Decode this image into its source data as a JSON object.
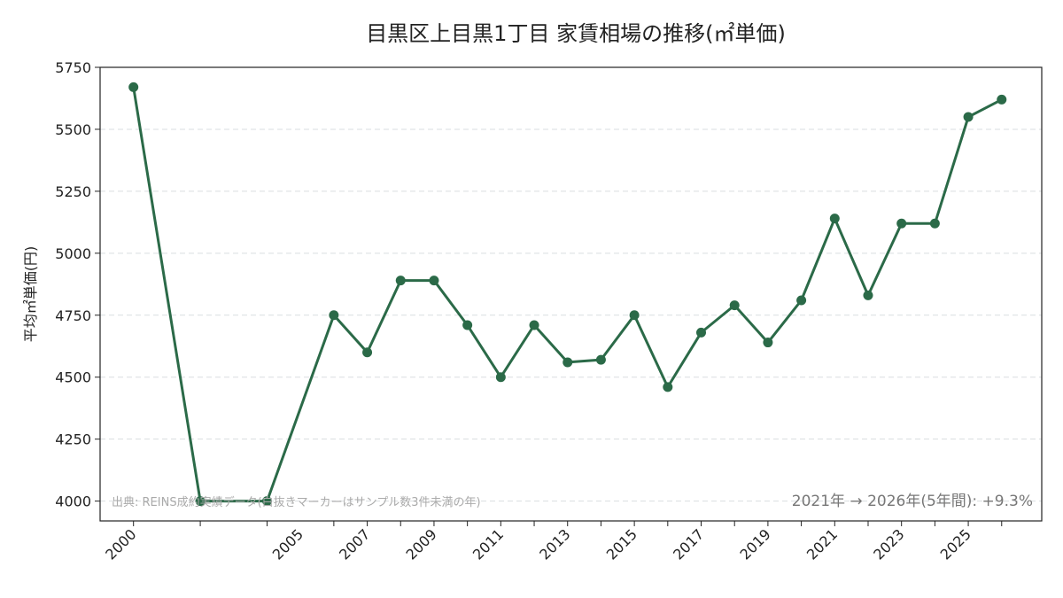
{
  "chart_data": {
    "type": "line",
    "title": "目黒区上目黒1丁目 家賃相場の推移(㎡単価)",
    "xlabel": "",
    "ylabel": "平均㎡単価(円)",
    "x": [
      2000,
      2002,
      2004,
      2006,
      2007,
      2008,
      2009,
      2010,
      2011,
      2012,
      2013,
      2014,
      2015,
      2016,
      2017,
      2018,
      2019,
      2020,
      2021,
      2022,
      2023,
      2024,
      2025,
      2026
    ],
    "values": [
      5670,
      4000,
      4000,
      4750,
      4600,
      4890,
      4890,
      4710,
      4500,
      4710,
      4560,
      4570,
      4750,
      4460,
      4680,
      4790,
      4640,
      4810,
      5140,
      4830,
      5120,
      5120,
      5550,
      5620
    ],
    "xticks": [
      "2000",
      "2005",
      "2007",
      "2009",
      "2011",
      "2013",
      "2015",
      "2017",
      "2019",
      "2021",
      "2023",
      "2025"
    ],
    "yticks": [
      "4000",
      "4250",
      "4500",
      "4750",
      "5000",
      "5250",
      "5500",
      "5750"
    ],
    "ylim": [
      3920,
      5750
    ],
    "grid": "y-dashed",
    "line_color": "#2b6a48",
    "source_note": "出典: REINS成約実績データ(白抜きマーカーはサンプル数3件未満の年)",
    "change_note": "2021年 → 2026年(5年間): +9.3%"
  }
}
